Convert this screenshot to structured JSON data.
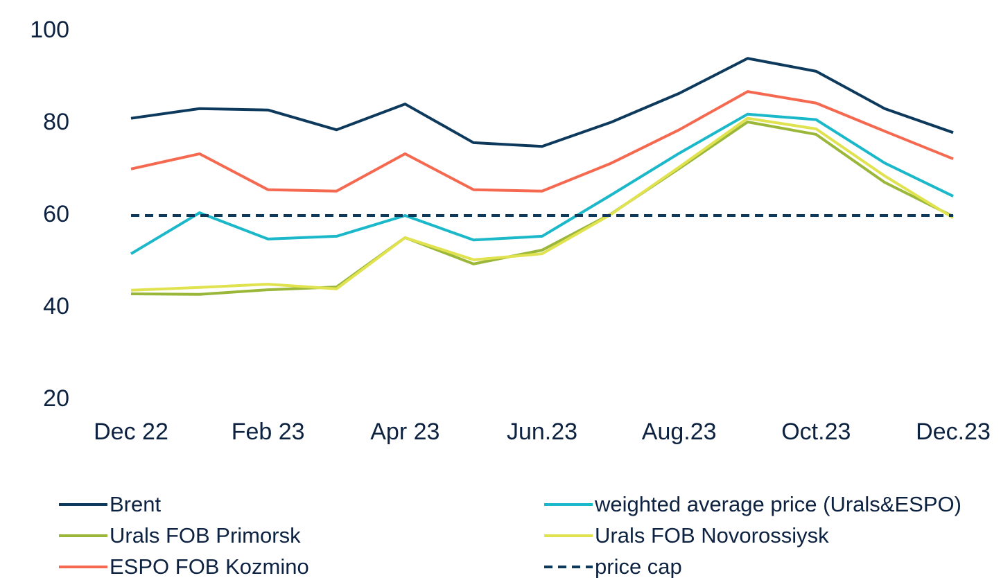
{
  "chart_data": {
    "type": "line",
    "categories": [
      "Dec 22",
      null,
      "Feb 23",
      null,
      "Apr 23",
      null,
      "Jun.23",
      null,
      "Aug.23",
      null,
      "Oct.23",
      null,
      "Dec.23"
    ],
    "ylim": [
      20,
      100
    ],
    "yticks": [
      20,
      40,
      60,
      80,
      100
    ],
    "grid": false,
    "series": [
      {
        "name": "Brent",
        "color": "#0d3a5c",
        "dash": false,
        "values": [
          81.1,
          83.2,
          82.9,
          78.6,
          84.2,
          75.8,
          75.0,
          80.2,
          86.5,
          94.1,
          91.3,
          83.2,
          78.0
        ]
      },
      {
        "name": "weighted average price (Urals&ESPO)",
        "color": "#1bb8c9",
        "dash": false,
        "values": [
          51.7,
          60.6,
          54.9,
          55.5,
          60.0,
          54.7,
          55.5,
          64.4,
          73.5,
          82.0,
          80.8,
          71.4,
          64.2
        ]
      },
      {
        "name": "Urals  FOB Primorsk",
        "color": "#9ab73a",
        "dash": false,
        "values": [
          43.0,
          42.9,
          43.9,
          44.5,
          55.2,
          49.5,
          52.5,
          60.3,
          70.2,
          80.3,
          77.6,
          67.2,
          59.8
        ]
      },
      {
        "name": "Urals FOB Novorossiysk",
        "color": "#e0e34f",
        "dash": false,
        "values": [
          43.8,
          44.4,
          45.1,
          44.1,
          55.2,
          50.4,
          51.7,
          60.2,
          70.5,
          81.1,
          78.8,
          68.6,
          59.5
        ]
      },
      {
        "name": "ESPO FOB Kozmino",
        "color": "#f4694f",
        "dash": false,
        "values": [
          70.1,
          73.4,
          65.6,
          65.3,
          73.4,
          65.6,
          65.3,
          71.3,
          78.6,
          86.9,
          84.4,
          78.3,
          72.3
        ]
      },
      {
        "name": "price cap",
        "color": "#0d3a5c",
        "dash": true,
        "values": [
          60,
          60,
          60,
          60,
          60,
          60,
          60,
          60,
          60,
          60,
          60,
          60,
          60
        ]
      }
    ]
  }
}
